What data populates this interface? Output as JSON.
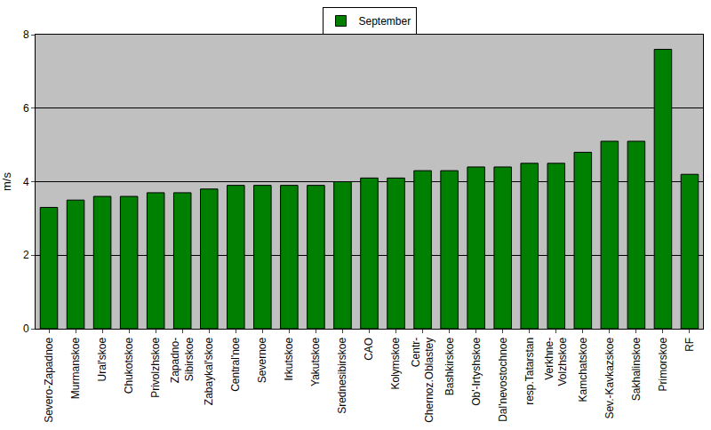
{
  "chart_data": {
    "type": "bar",
    "y_label": "m/s",
    "categories": [
      "Severo-Zapadnoe",
      "Murmanskoe",
      "Ural'skoe",
      "Chukotskoe",
      "Privolzhskoe",
      "Zapadno-\nSibirskoe",
      "Zabaykal'skoe",
      "Central'noe",
      "Severnoe",
      "Irkutskoe",
      "Yakutskoe",
      "Srednesibirskoe",
      "CAO",
      "Kolymskoe",
      "Centr-\nChernoz.Oblastey",
      "Bashkirskoe",
      "Ob'-Irtyshskoe",
      "Dal'nevostochnoe",
      "resp.Tatarstan",
      "Verkhne-\nVolzhskoe",
      "Kamchatskoe",
      "Sev.-Kavkazskoe",
      "Sakhalinskoe",
      "Primorskoe",
      "RF"
    ],
    "series": [
      {
        "name": "September",
        "color": "#008000",
        "values": [
          3.3,
          3.5,
          3.6,
          3.6,
          3.7,
          3.7,
          3.8,
          3.9,
          3.9,
          3.9,
          3.9,
          4.0,
          4.1,
          4.1,
          4.3,
          4.3,
          4.4,
          4.4,
          4.5,
          4.5,
          4.8,
          5.1,
          5.1,
          7.6,
          4.2
        ]
      }
    ],
    "ylim": [
      0,
      8
    ],
    "yticks": [
      0,
      2,
      4,
      6,
      8
    ],
    "grid": true,
    "legend": "top"
  }
}
